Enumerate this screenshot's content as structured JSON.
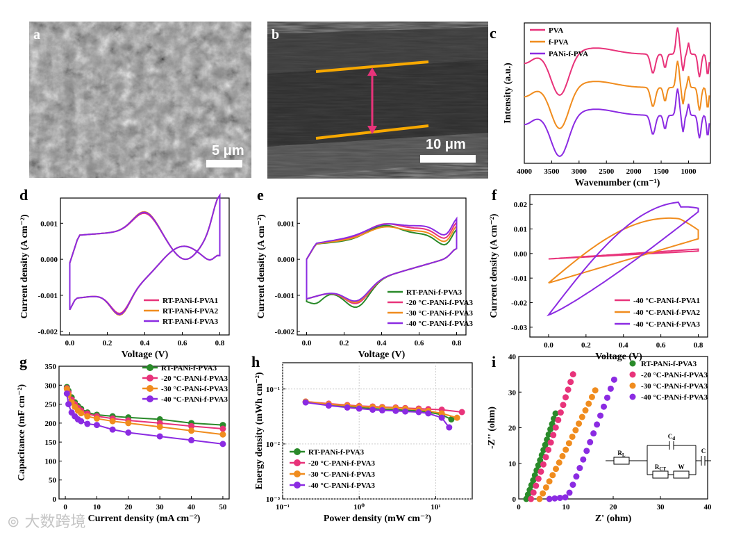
{
  "panel_labels": {
    "a": "a",
    "b": "b",
    "c": "c",
    "d": "d",
    "e": "e",
    "f": "f",
    "g": "g",
    "h": "h",
    "i": "i"
  },
  "sem": {
    "a_scale": "5 μm",
    "b_scale": "10 μm"
  },
  "colors": {
    "pink": "#e8337a",
    "orange": "#f08c1e",
    "purple": "#8b2be2",
    "green": "#2a8a2a",
    "magenta": "#e8337a",
    "yellow": "#f7a800"
  },
  "watermark": "大数跨境",
  "chart_data": [
    {
      "id": "c",
      "type": "line",
      "xlabel": "Wavenumber (cm⁻¹)",
      "ylabel": "Intensity (a.u.)",
      "xlim": [
        4000,
        600
      ],
      "xticks": [
        "4000",
        "3500",
        "3000",
        "2500",
        "2000",
        "1500",
        "1000"
      ],
      "legend": [
        "PVA",
        "f-PVA",
        "PANi-f-PVA"
      ]
    },
    {
      "id": "d",
      "type": "line",
      "xlabel": "Voltage (V)",
      "ylabel": "Current density (A cm⁻²)",
      "xlim": [
        -0.05,
        0.85
      ],
      "ylim": [
        -0.0021,
        0.0017
      ],
      "xticks": [
        "0.0",
        "0.2",
        "0.4",
        "0.6",
        "0.8"
      ],
      "yticks": [
        "-0.002",
        "-0.001",
        "0.000",
        "0.001"
      ],
      "legend": [
        "RT-PANi-f-PVA1",
        "RT-PANi-f-PVA2",
        "RT-PANi-f-PVA3"
      ]
    },
    {
      "id": "e",
      "type": "line",
      "xlabel": "Voltage (V)",
      "ylabel": "Current density (A cm⁻²)",
      "xlim": [
        -0.05,
        0.85
      ],
      "ylim": [
        -0.0021,
        0.0017
      ],
      "xticks": [
        "0.0",
        "0.2",
        "0.4",
        "0.6",
        "0.8"
      ],
      "yticks": [
        "-0.002",
        "-0.001",
        "0.000",
        "0.001"
      ],
      "legend": [
        "RT-PANi-f-PVA3",
        "-20 °C-PANi-f-PVA3",
        "-30 °C-PANi-f-PVA3",
        "-40 °C-PANi-f-PVA3"
      ]
    },
    {
      "id": "f",
      "type": "line",
      "xlabel": "Voltage (V)",
      "ylabel": "Current density (A cm⁻²)",
      "xlim": [
        -0.1,
        0.85
      ],
      "ylim": [
        -0.034,
        0.024
      ],
      "xticks": [
        "0.0",
        "0.2",
        "0.4",
        "0.6",
        "0.8"
      ],
      "yticks": [
        "-0.03",
        "-0.02",
        "-0.01",
        "0.00",
        "0.01",
        "0.02"
      ],
      "legend": [
        "-40 °C-PANi-f-PVA1",
        "-40 °C-PANi-f-PVA2",
        "-40 °C-PANi-f-PVA3"
      ]
    },
    {
      "id": "g",
      "type": "line",
      "xlabel": "Current density (mA cm⁻²)",
      "ylabel": "Capacitance (mF cm⁻²)",
      "xlim": [
        -2,
        52
      ],
      "ylim": [
        0,
        350
      ],
      "xticks": [
        "0",
        "10",
        "20",
        "30",
        "40",
        "50"
      ],
      "yticks": [
        "0",
        "50",
        "100",
        "150",
        "200",
        "250",
        "300",
        "350"
      ],
      "x": [
        0.5,
        1,
        2,
        3,
        4,
        5,
        7,
        10,
        15,
        20,
        30,
        40,
        50
      ],
      "series": [
        {
          "name": "RT-PANi-f-PVA3",
          "values": [
            295,
            285,
            268,
            255,
            245,
            238,
            228,
            222,
            218,
            215,
            210,
            200,
            195
          ]
        },
        {
          "name": "-20 °C-PANi-f-PVA3",
          "values": [
            292,
            280,
            262,
            250,
            240,
            233,
            225,
            218,
            212,
            207,
            200,
            192,
            185
          ]
        },
        {
          "name": "-30 °C-PANi-f-PVA3",
          "values": [
            290,
            275,
            255,
            243,
            233,
            226,
            218,
            212,
            205,
            200,
            190,
            180,
            170
          ]
        },
        {
          "name": "-40 °C-PANi-f-PVA3",
          "values": [
            278,
            250,
            228,
            218,
            210,
            205,
            198,
            195,
            183,
            175,
            165,
            155,
            145
          ]
        }
      ]
    },
    {
      "id": "h",
      "type": "line",
      "xlabel": "Power density (mW cm⁻²)",
      "ylabel": "Energy density (mWh cm⁻²)",
      "xscale": "log",
      "yscale": "log",
      "xlim": [
        0.1,
        30
      ],
      "ylim": [
        0.001,
        0.3
      ],
      "xticks": [
        "10⁻¹",
        "10⁰",
        "10¹"
      ],
      "yticks": [
        "10⁻³",
        "10⁻²",
        "10⁻¹"
      ],
      "series": [
        {
          "name": "RT-PANi-f-PVA3",
          "x": [
            0.2,
            0.4,
            0.7,
            1,
            1.5,
            2,
            3,
            4,
            6,
            8,
            12,
            16
          ],
          "values": [
            0.058,
            0.052,
            0.048,
            0.046,
            0.044,
            0.043,
            0.042,
            0.041,
            0.04,
            0.038,
            0.034,
            0.028
          ]
        },
        {
          "name": "-20 °C-PANi-f-PVA3",
          "x": [
            0.2,
            0.4,
            0.7,
            1,
            1.5,
            2,
            3,
            4,
            6,
            8,
            12,
            22
          ],
          "values": [
            0.059,
            0.054,
            0.051,
            0.049,
            0.048,
            0.047,
            0.046,
            0.045,
            0.044,
            0.043,
            0.042,
            0.038
          ]
        },
        {
          "name": "-30 °C-PANi-f-PVA3",
          "x": [
            0.2,
            0.4,
            0.7,
            1,
            1.5,
            2,
            3,
            4,
            6,
            8,
            12,
            19
          ],
          "values": [
            0.059,
            0.053,
            0.05,
            0.048,
            0.047,
            0.046,
            0.045,
            0.044,
            0.042,
            0.04,
            0.036,
            0.03
          ]
        },
        {
          "name": "-40 °C-PANi-f-PVA3",
          "x": [
            0.2,
            0.4,
            0.7,
            1,
            1.5,
            2,
            3,
            4,
            6,
            8,
            12,
            15
          ],
          "values": [
            0.057,
            0.05,
            0.046,
            0.044,
            0.042,
            0.041,
            0.04,
            0.039,
            0.038,
            0.036,
            0.03,
            0.02
          ]
        }
      ]
    },
    {
      "id": "i",
      "type": "scatter",
      "xlabel": "Z' (ohm)",
      "ylabel": "-Z'' (ohm)",
      "xlim": [
        0,
        40
      ],
      "ylim": [
        0,
        40
      ],
      "xticks": [
        "0",
        "10",
        "20",
        "30",
        "40"
      ],
      "yticks": [
        "0",
        "10",
        "20",
        "30",
        "40"
      ],
      "series": [
        {
          "name": "RT-PANi-f-PVA3",
          "x0": 1.6,
          "x1": 7.8,
          "ymax": 24
        },
        {
          "name": "-20 °C-PANi-f-PVA3",
          "x0": 2.6,
          "x1": 11.5,
          "ymax": 35
        },
        {
          "name": "-30 °C-PANi-f-PVA3",
          "x0": 4.4,
          "x1": 16.2,
          "ymax": 30.5
        },
        {
          "name": "-40 °C-PANi-f-PVA3",
          "x0": 6.5,
          "x1": 20.2,
          "ymax": 33.5
        }
      ],
      "circuit": {
        "rl": "R",
        "rl_sub": "L",
        "cd": "C",
        "cd_sub": "d",
        "rct": "R",
        "rct_sub": "CT",
        "w": "W",
        "c": "C"
      }
    }
  ]
}
